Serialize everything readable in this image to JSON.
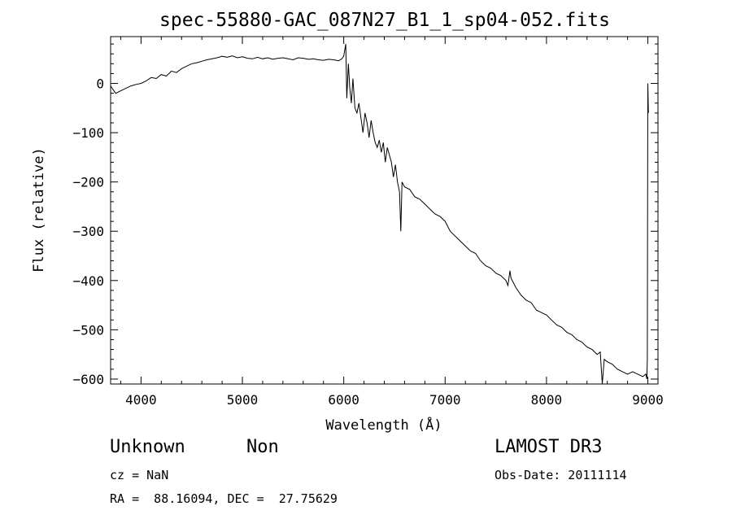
{
  "chart_data": {
    "type": "line",
    "title": "spec-55880-GAC_087N27_B1_1_sp04-052.fits",
    "xlabel": "Wavelength (Å)",
    "ylabel": "Flux (relative)",
    "xlim": [
      3700,
      9100
    ],
    "ylim": [
      -610,
      95
    ],
    "xticks": [
      4000,
      5000,
      6000,
      7000,
      8000,
      9000
    ],
    "xtick_labels": [
      "4000",
      "5000",
      "6000",
      "7000",
      "8000",
      "9000"
    ],
    "yticks": [
      0,
      -100,
      -200,
      -300,
      -400,
      -500,
      -600
    ],
    "ytick_labels": [
      "0",
      "−100",
      "−200",
      "−300",
      "−400",
      "−500",
      "−600"
    ],
    "grid": false,
    "series": [
      {
        "name": "flux",
        "x": [
          3700,
          3750,
          3800,
          3850,
          3900,
          3950,
          4000,
          4050,
          4100,
          4150,
          4200,
          4250,
          4300,
          4350,
          4400,
          4450,
          4500,
          4550,
          4600,
          4650,
          4700,
          4750,
          4800,
          4850,
          4900,
          4950,
          5000,
          5050,
          5100,
          5150,
          5200,
          5250,
          5300,
          5350,
          5400,
          5450,
          5500,
          5550,
          5600,
          5650,
          5700,
          5750,
          5800,
          5850,
          5900,
          5950,
          5980,
          6000,
          6020,
          6030,
          6045,
          6060,
          6075,
          6090,
          6110,
          6130,
          6150,
          6170,
          6190,
          6210,
          6230,
          6250,
          6270,
          6290,
          6310,
          6330,
          6350,
          6370,
          6390,
          6410,
          6430,
          6450,
          6470,
          6490,
          6510,
          6530,
          6550,
          6563,
          6575,
          6600,
          6650,
          6700,
          6750,
          6800,
          6850,
          6900,
          6950,
          7000,
          7050,
          7100,
          7150,
          7200,
          7250,
          7300,
          7350,
          7400,
          7450,
          7500,
          7550,
          7600,
          7620,
          7640,
          7650,
          7700,
          7750,
          7800,
          7850,
          7900,
          7950,
          8000,
          8050,
          8100,
          8150,
          8200,
          8250,
          8300,
          8350,
          8400,
          8450,
          8500,
          8530,
          8550,
          8570,
          8600,
          8650,
          8700,
          8750,
          8800,
          8850,
          8900,
          8950,
          8980,
          8990,
          8995,
          9000,
          9005
        ],
        "y": [
          -5,
          -20,
          -15,
          -10,
          -5,
          -2,
          0,
          5,
          12,
          10,
          18,
          15,
          25,
          22,
          30,
          35,
          40,
          42,
          45,
          48,
          50,
          52,
          55,
          53,
          56,
          52,
          54,
          51,
          50,
          53,
          50,
          52,
          49,
          51,
          52,
          50,
          48,
          52,
          51,
          49,
          50,
          48,
          47,
          49,
          48,
          46,
          50,
          55,
          80,
          -30,
          40,
          -10,
          -40,
          10,
          -50,
          -60,
          -40,
          -70,
          -100,
          -60,
          -80,
          -110,
          -75,
          -100,
          -120,
          -130,
          -115,
          -140,
          -120,
          -160,
          -130,
          -145,
          -160,
          -190,
          -165,
          -200,
          -220,
          -300,
          -200,
          -210,
          -215,
          -230,
          -235,
          -245,
          -255,
          -265,
          -270,
          -280,
          -300,
          -310,
          -320,
          -330,
          -340,
          -345,
          -360,
          -370,
          -375,
          -385,
          -390,
          -400,
          -410,
          -380,
          -395,
          -415,
          -430,
          -440,
          -445,
          -460,
          -465,
          -470,
          -480,
          -490,
          -495,
          -505,
          -510,
          -520,
          -525,
          -535,
          -540,
          -550,
          -545,
          -620,
          -560,
          -565,
          -570,
          -580,
          -585,
          -590,
          -585,
          -590,
          -595,
          -590,
          -600,
          -560,
          0,
          -60
        ]
      }
    ]
  },
  "info": {
    "class": "Unknown",
    "subclass": "Non",
    "survey": "LAMOST DR3",
    "cz": "cz = NaN",
    "obs_date": "Obs-Date: 20111114",
    "radec": "RA =  88.16094, DEC =  27.75629"
  }
}
